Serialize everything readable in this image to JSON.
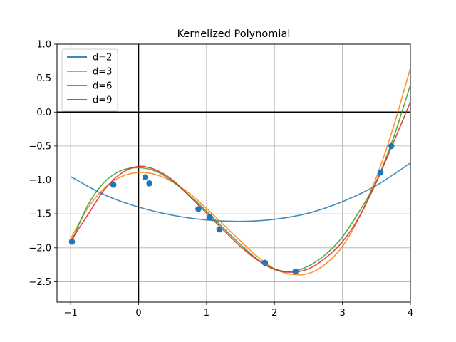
{
  "chart_data": {
    "type": "line",
    "title": "Kernelized Polynomial",
    "xlabel": "",
    "ylabel": "",
    "xlim": [
      -1.2,
      4.0
    ],
    "ylim": [
      -2.8,
      1.0
    ],
    "grid": true,
    "legend_placement": "top-left",
    "x_ticks": [
      -1,
      0,
      1,
      2,
      3,
      4
    ],
    "x_tick_labels": [
      "−1",
      "0",
      "1",
      "2",
      "3",
      "4"
    ],
    "y_ticks": [
      1.0,
      0.5,
      0.0,
      -0.5,
      -1.0,
      -1.5,
      -2.0,
      -2.5
    ],
    "y_tick_labels": [
      "1.0",
      "0.5",
      "0.0",
      "−0.5",
      "−1.0",
      "−1.5",
      "−2.0",
      "−2.5"
    ],
    "points": {
      "color": "#1f77b4",
      "x": [
        -0.98,
        -0.37,
        0.1,
        0.16,
        0.88,
        1.05,
        1.19,
        1.86,
        2.31,
        3.56,
        3.72
      ],
      "y": [
        -1.91,
        -1.07,
        -0.96,
        -1.05,
        -1.43,
        -1.55,
        -1.73,
        -2.22,
        -2.35,
        -0.89,
        -0.5
      ]
    },
    "series": [
      {
        "name": "d=2",
        "color": "#1f77b4",
        "x": [
          -1.0,
          -0.5,
          0.0,
          0.5,
          1.0,
          1.5,
          2.0,
          2.5,
          3.0,
          3.5,
          4.0
        ],
        "y": [
          -0.95,
          -1.22,
          -1.4,
          -1.52,
          -1.59,
          -1.61,
          -1.58,
          -1.49,
          -1.32,
          -1.08,
          -0.75
        ]
      },
      {
        "name": "d=3",
        "color": "#ff7f0e",
        "x": [
          -1.0,
          -0.75,
          -0.5,
          -0.25,
          0.0,
          0.25,
          0.5,
          0.75,
          1.0,
          1.25,
          1.5,
          1.75,
          2.0,
          2.25,
          2.5,
          2.75,
          3.0,
          3.25,
          3.5,
          3.75,
          4.0
        ],
        "y": [
          -1.87,
          -1.42,
          -1.12,
          -0.95,
          -0.89,
          -0.92,
          -1.03,
          -1.2,
          -1.42,
          -1.66,
          -1.9,
          -2.13,
          -2.31,
          -2.39,
          -2.38,
          -2.24,
          -1.98,
          -1.54,
          -0.96,
          -0.22,
          0.65
        ]
      },
      {
        "name": "d=6",
        "color": "#2ca02c",
        "x": [
          -1.0,
          -0.75,
          -0.5,
          -0.25,
          0.0,
          0.25,
          0.5,
          0.75,
          1.0,
          1.25,
          1.5,
          1.75,
          2.0,
          2.25,
          2.5,
          2.75,
          3.0,
          3.25,
          3.5,
          3.75,
          4.0
        ],
        "y": [
          -1.95,
          -1.38,
          -1.03,
          -0.86,
          -0.82,
          -0.87,
          -1.02,
          -1.23,
          -1.46,
          -1.71,
          -1.95,
          -2.17,
          -2.31,
          -2.35,
          -2.27,
          -2.1,
          -1.84,
          -1.46,
          -1.02,
          -0.38,
          0.4
        ]
      },
      {
        "name": "d=9",
        "color": "#d62728",
        "x": [
          -1.0,
          -0.75,
          -0.5,
          -0.25,
          0.0,
          0.25,
          0.5,
          0.75,
          1.0,
          1.25,
          1.5,
          1.75,
          2.0,
          2.25,
          2.5,
          2.75,
          3.0,
          3.25,
          3.5,
          3.75,
          4.0
        ],
        "y": [
          -1.9,
          -1.52,
          -1.14,
          -0.9,
          -0.8,
          -0.85,
          -1.0,
          -1.24,
          -1.49,
          -1.74,
          -1.98,
          -2.18,
          -2.32,
          -2.36,
          -2.31,
          -2.15,
          -1.91,
          -1.54,
          -1.03,
          -0.45,
          0.15
        ]
      }
    ]
  }
}
